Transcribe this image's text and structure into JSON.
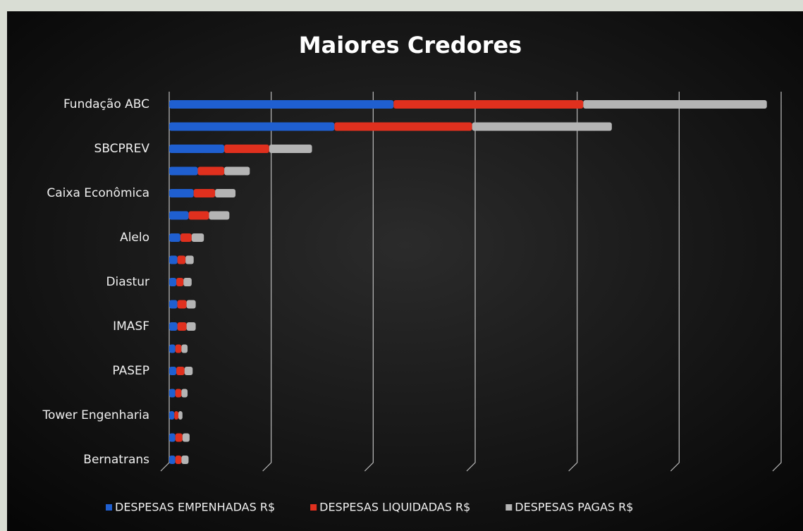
{
  "chart_data": {
    "type": "stacked_barh",
    "title": "Maiores Credores",
    "categories": [
      "Fundação ABC",
      null,
      "SBCPREV",
      null,
      "Caixa Econômica",
      null,
      "Alelo",
      null,
      "Diastur",
      null,
      "IMASF",
      null,
      "PASEP",
      null,
      "Tower Engenharia",
      null,
      "Bernatrans"
    ],
    "series": [
      {
        "name": "DESPESAS EMPENHADAS R$",
        "color": "#1f5fd0",
        "values": [
          2.2,
          1.62,
          0.54,
          0.28,
          0.24,
          0.19,
          0.11,
          0.08,
          0.07,
          0.08,
          0.08,
          0.06,
          0.07,
          0.06,
          0.05,
          0.06,
          0.06
        ]
      },
      {
        "name": "DESPESAS LIQUIDADAS R$",
        "color": "#e0301e",
        "values": [
          1.86,
          1.35,
          0.44,
          0.26,
          0.21,
          0.2,
          0.11,
          0.08,
          0.07,
          0.09,
          0.09,
          0.06,
          0.08,
          0.06,
          0.04,
          0.07,
          0.06
        ]
      },
      {
        "name": "DESPESAS PAGAS R$",
        "color": "#b4b4b4",
        "values": [
          1.8,
          1.37,
          0.42,
          0.25,
          0.2,
          0.2,
          0.12,
          0.08,
          0.08,
          0.09,
          0.09,
          0.06,
          0.08,
          0.06,
          0.04,
          0.07,
          0.07
        ]
      }
    ],
    "xlim": [
      0,
      6
    ],
    "xticks": [
      0,
      1,
      2,
      3,
      4,
      5,
      6
    ],
    "grid": true,
    "legend": "bottom"
  }
}
